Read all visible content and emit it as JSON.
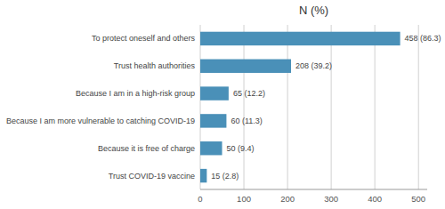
{
  "chart_data": {
    "type": "bar",
    "orientation": "horizontal",
    "title": "N (%)",
    "categories": [
      "Trust COVID-19 vaccine",
      "Because it is free of charge",
      "Because I am more vulnerable to catching COVID-19",
      "Because I am in a high-risk group",
      "Trust health authorities",
      "To protect oneself and others"
    ],
    "values": [
      15,
      50,
      60,
      65,
      208,
      458
    ],
    "value_labels": [
      "15 (2.8)",
      "50 (9.4)",
      "60 (11.3)",
      "65 (12.2)",
      "208 (39.2)",
      "458 (86.3)"
    ],
    "data_labels": true,
    "color": "#4a90b8",
    "xlim": [
      0,
      520
    ],
    "xticks": [
      0,
      100,
      200,
      300,
      400,
      500
    ],
    "grid": true
  }
}
